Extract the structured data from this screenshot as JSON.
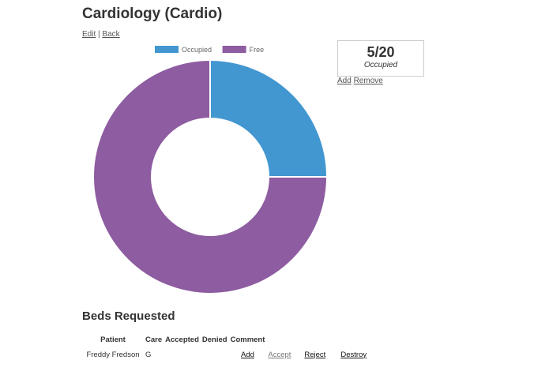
{
  "page": {
    "title": "Cardiology (Cardio)",
    "links": {
      "edit": "Edit",
      "separator": "|",
      "back": "Back"
    }
  },
  "chart_data": {
    "type": "pie",
    "variant": "doughnut",
    "title": "",
    "legend_position": "top",
    "categories": [
      "Occupied",
      "Free"
    ],
    "values": [
      5,
      15
    ],
    "colors": [
      "#4297d0",
      "#8e5ca0"
    ]
  },
  "stats": {
    "count": "5/20",
    "label": "Occupied",
    "add_label": "Add",
    "remove_label": "Remove"
  },
  "requests": {
    "title": "Beds Requested",
    "columns": [
      "Patient",
      "Care",
      "Accepted",
      "Denied",
      "Comment"
    ],
    "rows": [
      {
        "patient": "Freddy Fredson",
        "care": "G",
        "add": "Add",
        "accept": "Accept",
        "reject": "Reject",
        "destroy": "Destroy"
      }
    ]
  }
}
